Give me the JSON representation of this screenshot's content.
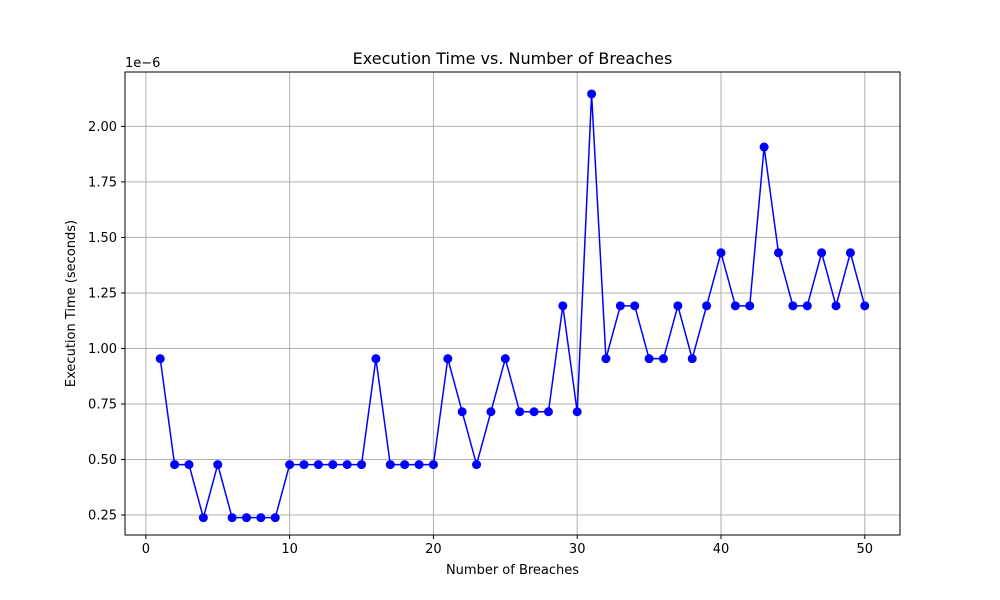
{
  "chart_data": {
    "type": "line",
    "title": "Execution Time vs. Number of Breaches",
    "xlabel": "Number of Breaches",
    "ylabel": "Execution Time (seconds)",
    "y_offset_label": "1e−6",
    "xlim": [
      -1.45,
      52.45
    ],
    "ylim": [
      0.16,
      2.245
    ],
    "xticks": [
      {
        "value": 0,
        "label": "0"
      },
      {
        "value": 10,
        "label": "10"
      },
      {
        "value": 20,
        "label": "20"
      },
      {
        "value": 30,
        "label": "30"
      },
      {
        "value": 40,
        "label": "40"
      },
      {
        "value": 50,
        "label": "50"
      }
    ],
    "yticks": [
      {
        "value": 0.25,
        "label": "0.25"
      },
      {
        "value": 0.5,
        "label": "0.50"
      },
      {
        "value": 0.75,
        "label": "0.75"
      },
      {
        "value": 1.0,
        "label": "1.00"
      },
      {
        "value": 1.25,
        "label": "1.25"
      },
      {
        "value": 1.5,
        "label": "1.50"
      },
      {
        "value": 1.75,
        "label": "1.75"
      },
      {
        "value": 2.0,
        "label": "2.00"
      }
    ],
    "grid": true,
    "series": [
      {
        "color": "#0000ff",
        "marker": "circle",
        "x": [
          1,
          2,
          3,
          4,
          5,
          6,
          7,
          8,
          9,
          10,
          11,
          12,
          13,
          14,
          15,
          16,
          17,
          18,
          19,
          20,
          21,
          22,
          23,
          24,
          25,
          26,
          27,
          28,
          29,
          30,
          31,
          32,
          33,
          34,
          35,
          36,
          37,
          38,
          39,
          40,
          41,
          42,
          43,
          44,
          45,
          46,
          47,
          48,
          49,
          50
        ],
        "values": [
          0.954,
          0.477,
          0.477,
          0.238,
          0.477,
          0.238,
          0.238,
          0.238,
          0.238,
          0.477,
          0.477,
          0.477,
          0.477,
          0.477,
          0.477,
          0.954,
          0.477,
          0.477,
          0.477,
          0.477,
          0.954,
          0.715,
          0.477,
          0.715,
          0.954,
          0.715,
          0.715,
          0.715,
          1.192,
          0.715,
          2.146,
          0.954,
          1.192,
          1.192,
          0.954,
          0.954,
          1.192,
          0.954,
          1.192,
          1.431,
          1.192,
          1.192,
          1.907,
          1.431,
          1.192,
          1.192,
          1.431,
          1.192,
          1.431,
          1.192
        ]
      }
    ]
  }
}
